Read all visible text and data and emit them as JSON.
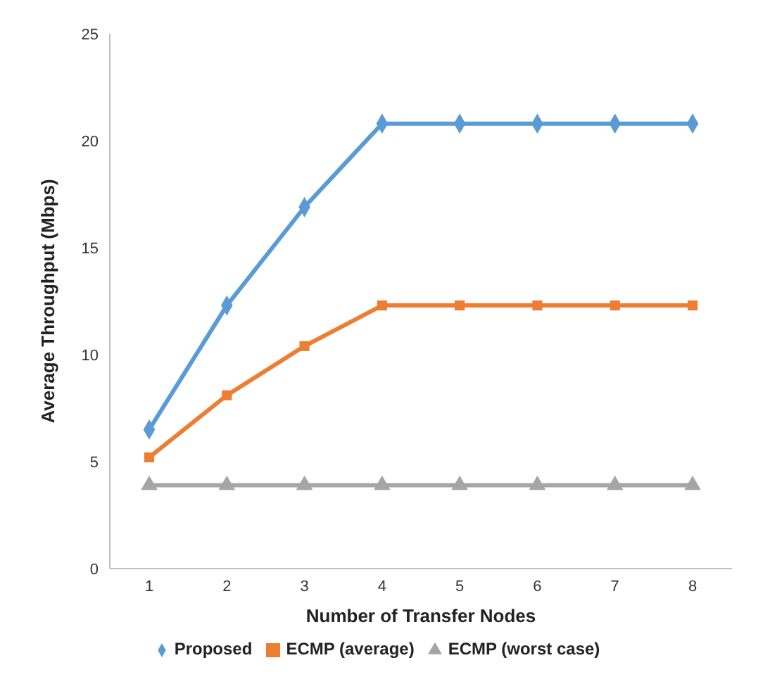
{
  "chart_data": {
    "type": "line",
    "xlabel": "Number of Transfer Nodes",
    "ylabel": "Average Throughput (Mbps)",
    "categories": [
      "1",
      "2",
      "3",
      "4",
      "5",
      "6",
      "7",
      "8"
    ],
    "ylim": [
      0,
      25
    ],
    "yticks": [
      0,
      5,
      10,
      15,
      20,
      25
    ],
    "grid": false,
    "legend": "bottom",
    "series": [
      {
        "name": "Proposed",
        "color": "#5b9bd5",
        "marker": "diamond",
        "values": [
          6.5,
          12.3,
          16.9,
          20.8,
          20.8,
          20.8,
          20.8,
          20.8
        ]
      },
      {
        "name": "ECMP (average)",
        "color": "#ed7d31",
        "marker": "square",
        "values": [
          5.2,
          8.1,
          10.4,
          12.3,
          12.3,
          12.3,
          12.3,
          12.3
        ]
      },
      {
        "name": "ECMP (worst case)",
        "color": "#a5a5a5",
        "marker": "triangle",
        "values": [
          3.9,
          3.9,
          3.9,
          3.9,
          3.9,
          3.9,
          3.9,
          3.9
        ]
      }
    ]
  }
}
